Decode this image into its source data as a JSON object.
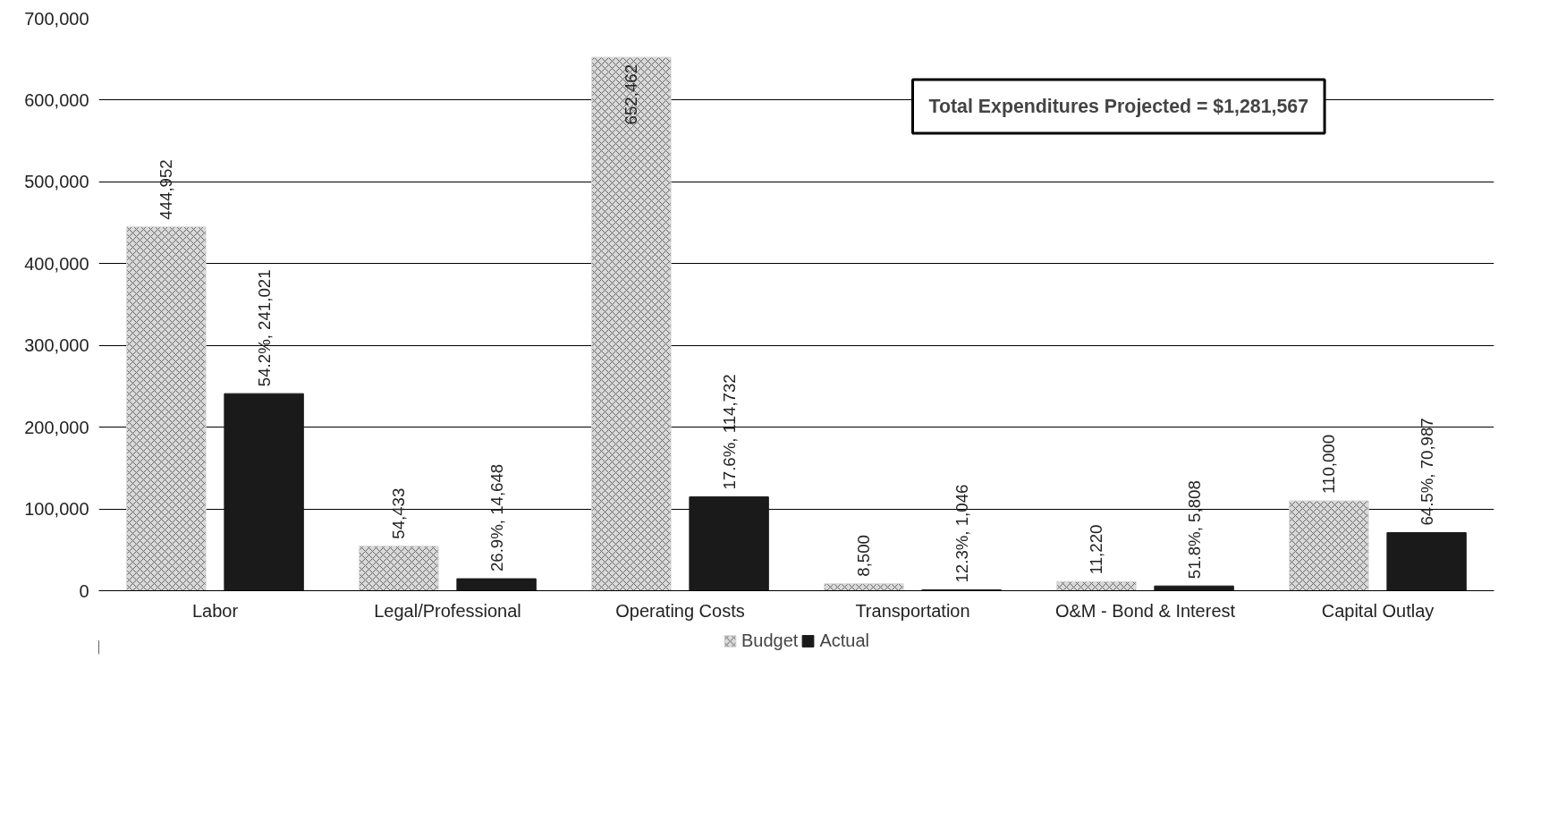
{
  "chart_data": {
    "type": "bar",
    "categories": [
      "Labor",
      "Legal/Professional",
      "Operating Costs",
      "Transportation",
      "O&M - Bond & Interest",
      "Capital Outlay"
    ],
    "series": [
      {
        "name": "Budget",
        "color": "#d9d9d9",
        "values": [
          444952,
          54433,
          652462,
          8500,
          11220,
          110000
        ],
        "value_labels": [
          "444,952",
          "54,433",
          "652,462",
          "8,500",
          "11,220",
          "110,000"
        ]
      },
      {
        "name": "Actual",
        "color": "#1a1a1a",
        "values": [
          241021,
          14648,
          114732,
          1046,
          5808,
          70987
        ],
        "value_labels": [
          "54.2%, 241,021",
          "26.9%, 14,648",
          "17.6%, 114,732",
          "12.3%, 1,046",
          "51.8%, 5,808",
          "64.5%, 70,987"
        ]
      }
    ],
    "ylim": [
      0,
      700000
    ],
    "yticks": [
      {
        "value": 0,
        "label": "0"
      },
      {
        "value": 100000,
        "label": "100,000"
      },
      {
        "value": 200000,
        "label": "200,000"
      },
      {
        "value": 300000,
        "label": "300,000"
      },
      {
        "value": 400000,
        "label": "400,000"
      },
      {
        "value": 500000,
        "label": "500,000"
      },
      {
        "value": 600000,
        "label": "600,000"
      },
      {
        "value": 700000,
        "label": "700,000"
      }
    ],
    "grid": "y",
    "legend": "bottom",
    "annotations": [
      "Total Expenditures Projected = $1,281,567"
    ]
  }
}
